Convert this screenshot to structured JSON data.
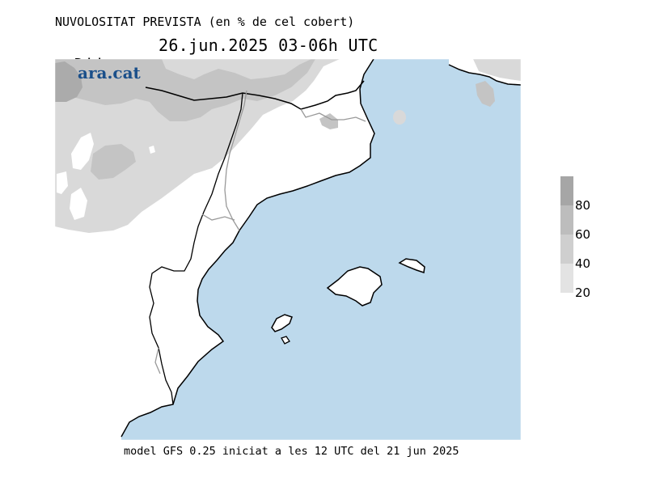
{
  "header": {
    "title": "NUVOLOSITAT PREVISTA (en % de cel cobert)",
    "day": "Dijous",
    "datetime": "26.jun.2025 03-06h UTC"
  },
  "logo": {
    "text": "ara.cat"
  },
  "footer": {
    "text": "model GFS 0.25 iniciat a les 12 UTC del 21 jun 2025"
  },
  "legend": {
    "labels": [
      "80",
      "60",
      "40",
      "20"
    ],
    "colors": [
      "#a6a6a6",
      "#bdbdbd",
      "#cfcfcf",
      "#e3e3e3"
    ]
  },
  "colors": {
    "sea": "#bdd9ec",
    "land": "#ffffff",
    "cloud_light": "#d9d9d9",
    "cloud_mid": "#c4c4c4",
    "cloud_dark": "#ababab"
  }
}
